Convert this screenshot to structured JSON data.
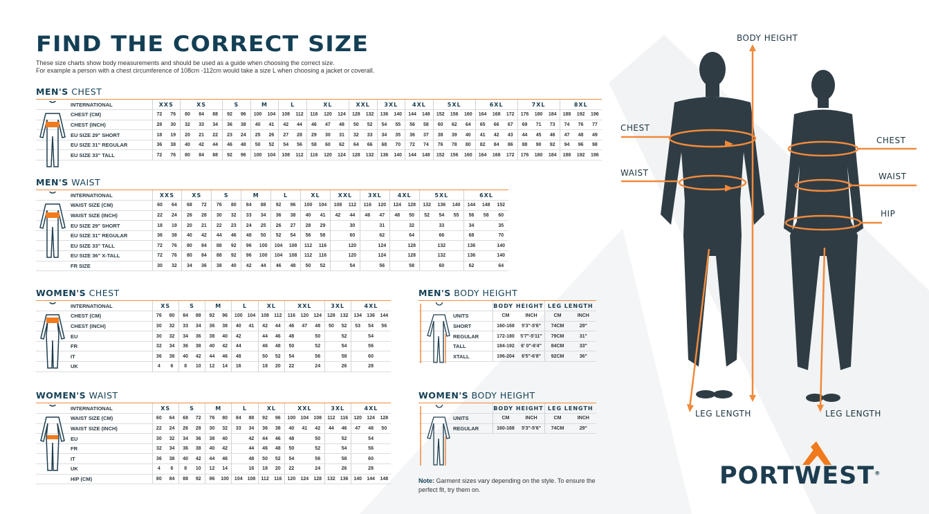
{
  "header": {
    "title": "FIND THE CORRECT SIZE",
    "line1": "These size charts show body measurements and should be used as a guide when choosing the correct size.",
    "line2": "For example a person with a chest circumference of 108cm -112cm would take a size L when choosing a jacket or coverall."
  },
  "colors": {
    "accent": "#f08a3c",
    "brand": "#133f55"
  },
  "mens_chest": {
    "heading_bold": "MEN'S",
    "heading_light": "CHEST",
    "header_label": "INTERNATIONAL",
    "sizes": [
      [
        "XXS",
        2
      ],
      [
        "XS",
        3
      ],
      [
        "S",
        2
      ],
      [
        "M",
        2
      ],
      [
        "L",
        2
      ],
      [
        "XL",
        3
      ],
      [
        "XXL",
        2
      ],
      [
        "3XL",
        2
      ],
      [
        "4XL",
        2
      ],
      [
        "5XL",
        3
      ],
      [
        "6XL",
        3
      ],
      [
        "7XL",
        3
      ],
      [
        "8XL",
        3
      ]
    ],
    "rows": [
      {
        "label": "CHEST (CM)",
        "values": [
          "72",
          "76",
          "80",
          "84",
          "88",
          "92",
          "96",
          "100",
          "104",
          "108",
          "112",
          "116",
          "120",
          "124",
          "128",
          "132",
          "136",
          "140",
          "144",
          "148",
          "152",
          "156",
          "160",
          "164",
          "168",
          "172",
          "176",
          "180",
          "184",
          "188",
          "192",
          "196"
        ]
      },
      {
        "label": "CHEST (INCH)",
        "values": [
          "28",
          "30",
          "32",
          "33",
          "34",
          "36",
          "38",
          "40",
          "41",
          "42",
          "44",
          "46",
          "47",
          "48",
          "50",
          "52",
          "54",
          "55",
          "56",
          "58",
          "60",
          "62",
          "64",
          "65",
          "66",
          "67",
          "69",
          "71",
          "73",
          "74",
          "76",
          "77"
        ]
      },
      {
        "label": "EU SIZE 29\" SHORT",
        "values": [
          "18",
          "19",
          "20",
          "21",
          "22",
          "23",
          "24",
          "25",
          "26",
          "27",
          "28",
          "29",
          "30",
          "31",
          "32",
          "33",
          "34",
          "35",
          "36",
          "37",
          "38",
          "39",
          "40",
          "41",
          "42",
          "43",
          "44",
          "45",
          "46",
          "47",
          "48",
          "49"
        ]
      },
      {
        "label": "EU SIZE 31\" REGULAR",
        "values": [
          "36",
          "38",
          "40",
          "42",
          "44",
          "46",
          "48",
          "50",
          "52",
          "54",
          "56",
          "58",
          "60",
          "62",
          "64",
          "66",
          "68",
          "70",
          "72",
          "74",
          "76",
          "78",
          "80",
          "82",
          "84",
          "86",
          "88",
          "90",
          "92",
          "94",
          "96",
          "98"
        ]
      },
      {
        "label": "EU SIZE 33\" TALL",
        "values": [
          "72",
          "76",
          "80",
          "84",
          "88",
          "92",
          "96",
          "100",
          "104",
          "108",
          "112",
          "116",
          "120",
          "124",
          "128",
          "132",
          "136",
          "140",
          "144",
          "148",
          "152",
          "156",
          "160",
          "164",
          "168",
          "172",
          "176",
          "180",
          "184",
          "188",
          "192",
          "196"
        ]
      }
    ]
  },
  "mens_waist": {
    "heading_bold": "MEN'S",
    "heading_light": "WAIST",
    "header_label": "INTERNATIONAL",
    "sizes": [
      [
        "XXS",
        2
      ],
      [
        "XS",
        2
      ],
      [
        "S",
        2
      ],
      [
        "M",
        2
      ],
      [
        "L",
        2
      ],
      [
        "XL",
        2
      ],
      [
        "XXL",
        2
      ],
      [
        "3XL",
        2
      ],
      [
        "4XL",
        2
      ],
      [
        "5XL",
        3
      ],
      [
        "6XL",
        3
      ]
    ],
    "rows": [
      {
        "label": "WAIST SIZE (CM)",
        "values": [
          "60",
          "64",
          "68",
          "72",
          "76",
          "80",
          "84",
          "88",
          "92",
          "96",
          "100",
          "104",
          "108",
          "112",
          "116",
          "120",
          "124",
          "128",
          "132",
          "136",
          "140",
          "144",
          "148",
          "152"
        ]
      },
      {
        "label": "WAIST SIZE (INCH)",
        "values": [
          "22",
          "24",
          "26",
          "28",
          "30",
          "32",
          "33",
          "34",
          "36",
          "38",
          "40",
          "41",
          "42",
          "44",
          "46",
          "47",
          "48",
          "50",
          "52",
          "54",
          "55",
          "56",
          "58",
          "60"
        ]
      },
      {
        "label": "EU SIZE 29\" SHORT",
        "values": [
          "18",
          "19",
          "20",
          "21",
          "22",
          "23",
          "24",
          "25",
          "26",
          "27",
          "28",
          "29",
          "",
          "30",
          "",
          "31",
          "",
          "32",
          "",
          "33",
          "",
          "34",
          "",
          "35"
        ]
      },
      {
        "label": "EU SIZE 31\" REGULAR",
        "values": [
          "36",
          "38",
          "40",
          "42",
          "44",
          "46",
          "48",
          "50",
          "52",
          "54",
          "56",
          "58",
          "",
          "60",
          "",
          "62",
          "",
          "64",
          "",
          "66",
          "",
          "68",
          "",
          "70"
        ]
      },
      {
        "label": "EU SIZE 33\" TALL",
        "values": [
          "72",
          "76",
          "80",
          "84",
          "88",
          "92",
          "96",
          "100",
          "104",
          "108",
          "112",
          "116",
          "",
          "120",
          "",
          "124",
          "",
          "128",
          "",
          "132",
          "",
          "136",
          "",
          "140"
        ]
      },
      {
        "label": "EU SIZE 36\" X-TALL",
        "values": [
          "72",
          "76",
          "80",
          "84",
          "88",
          "92",
          "96",
          "100",
          "104",
          "108",
          "112",
          "116",
          "",
          "120",
          "",
          "124",
          "",
          "128",
          "",
          "132",
          "",
          "136",
          "",
          "140"
        ]
      },
      {
        "label": "FR SIZE",
        "values": [
          "30",
          "32",
          "34",
          "36",
          "38",
          "40",
          "42",
          "44",
          "46",
          "48",
          "50",
          "52",
          "",
          "54",
          "",
          "56",
          "",
          "58",
          "",
          "60",
          "",
          "62",
          "",
          "64"
        ]
      }
    ]
  },
  "womens_chest": {
    "heading_bold": "WOMEN'S",
    "heading_light": "CHEST",
    "header_label": "INTERNATIONAL",
    "sizes": [
      [
        "XS",
        2
      ],
      [
        "S",
        2
      ],
      [
        "M",
        2
      ],
      [
        "L",
        2
      ],
      [
        "XL",
        2
      ],
      [
        "XXL",
        3
      ],
      [
        "3XL",
        2
      ],
      [
        "4XL",
        3
      ]
    ],
    "rows": [
      {
        "label": "CHEST (CM)",
        "values": [
          "76",
          "80",
          "84",
          "88",
          "92",
          "96",
          "100",
          "104",
          "108",
          "112",
          "116",
          "120",
          "124",
          "128",
          "132",
          "134",
          "136",
          "144"
        ]
      },
      {
        "label": "CHEST (INCH)",
        "values": [
          "30",
          "32",
          "33",
          "34",
          "36",
          "38",
          "40",
          "41",
          "42",
          "44",
          "46",
          "47",
          "48",
          "50",
          "52",
          "53",
          "54",
          "56"
        ]
      },
      {
        "label": "EU",
        "values": [
          "30",
          "32",
          "34",
          "36",
          "38",
          "40",
          "42",
          "",
          "44",
          "46",
          "48",
          "",
          "50",
          "",
          "52",
          "",
          "54",
          ""
        ]
      },
      {
        "label": "FR",
        "values": [
          "32",
          "34",
          "36",
          "38",
          "40",
          "42",
          "44",
          "",
          "46",
          "48",
          "50",
          "",
          "52",
          "",
          "54",
          "",
          "56",
          ""
        ]
      },
      {
        "label": "IT",
        "values": [
          "36",
          "38",
          "40",
          "42",
          "44",
          "46",
          "48",
          "",
          "50",
          "52",
          "54",
          "",
          "56",
          "",
          "58",
          "",
          "60",
          ""
        ]
      },
      {
        "label": "UK",
        "values": [
          "4",
          "6",
          "8",
          "10",
          "12",
          "14",
          "16",
          "",
          "18",
          "20",
          "22",
          "",
          "24",
          "",
          "26",
          "",
          "28",
          ""
        ]
      }
    ]
  },
  "womens_waist": {
    "heading_bold": "WOMEN'S",
    "heading_light": "WAIST",
    "header_label": "INTERNATIONAL",
    "sizes": [
      [
        "XS",
        2
      ],
      [
        "S",
        2
      ],
      [
        "M",
        2
      ],
      [
        "L",
        2
      ],
      [
        "XL",
        2
      ],
      [
        "XXL",
        3
      ],
      [
        "3XL",
        2
      ],
      [
        "4XL",
        3
      ]
    ],
    "rows": [
      {
        "label": "WAIST SIZE (CM)",
        "values": [
          "60",
          "64",
          "68",
          "72",
          "76",
          "80",
          "84",
          "88",
          "92",
          "96",
          "100",
          "104",
          "108",
          "112",
          "116",
          "120",
          "124",
          "128"
        ]
      },
      {
        "label": "WAIST SIZE (INCH)",
        "values": [
          "22",
          "24",
          "26",
          "28",
          "30",
          "32",
          "33",
          "34",
          "36",
          "38",
          "40",
          "41",
          "42",
          "44",
          "46",
          "47",
          "48",
          "50"
        ]
      },
      {
        "label": "EU",
        "values": [
          "30",
          "32",
          "34",
          "36",
          "38",
          "40",
          "",
          "42",
          "44",
          "46",
          "48",
          "",
          "50",
          "",
          "52",
          "",
          "54",
          ""
        ]
      },
      {
        "label": "FR",
        "values": [
          "32",
          "34",
          "36",
          "38",
          "40",
          "42",
          "",
          "44",
          "46",
          "48",
          "50",
          "",
          "52",
          "",
          "54",
          "",
          "56",
          ""
        ]
      },
      {
        "label": "IT",
        "values": [
          "36",
          "38",
          "40",
          "42",
          "44",
          "46",
          "",
          "48",
          "50",
          "52",
          "54",
          "",
          "56",
          "",
          "58",
          "",
          "60",
          ""
        ]
      },
      {
        "label": "UK",
        "values": [
          "4",
          "6",
          "8",
          "10",
          "12",
          "14",
          "",
          "16",
          "18",
          "20",
          "22",
          "",
          "24",
          "",
          "26",
          "",
          "28",
          ""
        ]
      },
      {
        "label": "HIP (CM)",
        "values": [
          "80",
          "84",
          "88",
          "92",
          "96",
          "100",
          "104",
          "108",
          "112",
          "116",
          "120",
          "124",
          "128",
          "132",
          "136",
          "140",
          "144",
          "148"
        ]
      }
    ]
  },
  "mens_height": {
    "heading_bold": "MEN'S",
    "heading_light": "BODY HEIGHT",
    "header_label": "",
    "sizes": [
      [
        "BODY HEIGHT",
        2
      ],
      [
        "LEG LENGTH",
        2
      ]
    ],
    "rows": [
      {
        "label": "UNITS",
        "values": [
          "CM",
          "INCH",
          "CM",
          "INCH"
        ]
      },
      {
        "label": "SHORT",
        "values": [
          "160-168",
          "5'3\"-5'6\"",
          "74CM",
          "29\""
        ]
      },
      {
        "label": "REGULAR",
        "values": [
          "172-180",
          "5'7\"-5'11\"",
          "79CM",
          "31\""
        ]
      },
      {
        "label": "TALL",
        "values": [
          "184-192",
          "6' 0\"-6'4\"",
          "84CM",
          "33\""
        ]
      },
      {
        "label": "XTALL",
        "values": [
          "196-204",
          "6'5\"-6'8\"",
          "92CM",
          "36\""
        ]
      }
    ]
  },
  "womens_height": {
    "heading_bold": "WOMEN'S",
    "heading_light": "BODY HEIGHT",
    "header_label": "",
    "sizes": [
      [
        "BODY HEIGHT",
        2
      ],
      [
        "LEG LENGTH",
        2
      ]
    ],
    "rows": [
      {
        "label": "UNITS",
        "values": [
          "CM",
          "INCH",
          "CM",
          "INCH"
        ]
      },
      {
        "label": "REGULAR",
        "values": [
          "160-168",
          "5'3\"-5'6\"",
          "74CM",
          "29\""
        ]
      }
    ]
  },
  "note": {
    "bold": "Note:",
    "text": " Garment sizes vary depending on the style. To ensure the perfect fit, try them on."
  },
  "photo_labels": {
    "body_height": "BODY HEIGHT",
    "chest_m": "CHEST",
    "waist_m": "WAIST",
    "chest_w": "CHEST",
    "waist_w": "WAIST",
    "hip": "HIP",
    "leg_m": "LEG LENGTH",
    "leg_w": "LEG LENGTH"
  },
  "logo": {
    "text": "PORTWEST",
    "mark": "®"
  }
}
